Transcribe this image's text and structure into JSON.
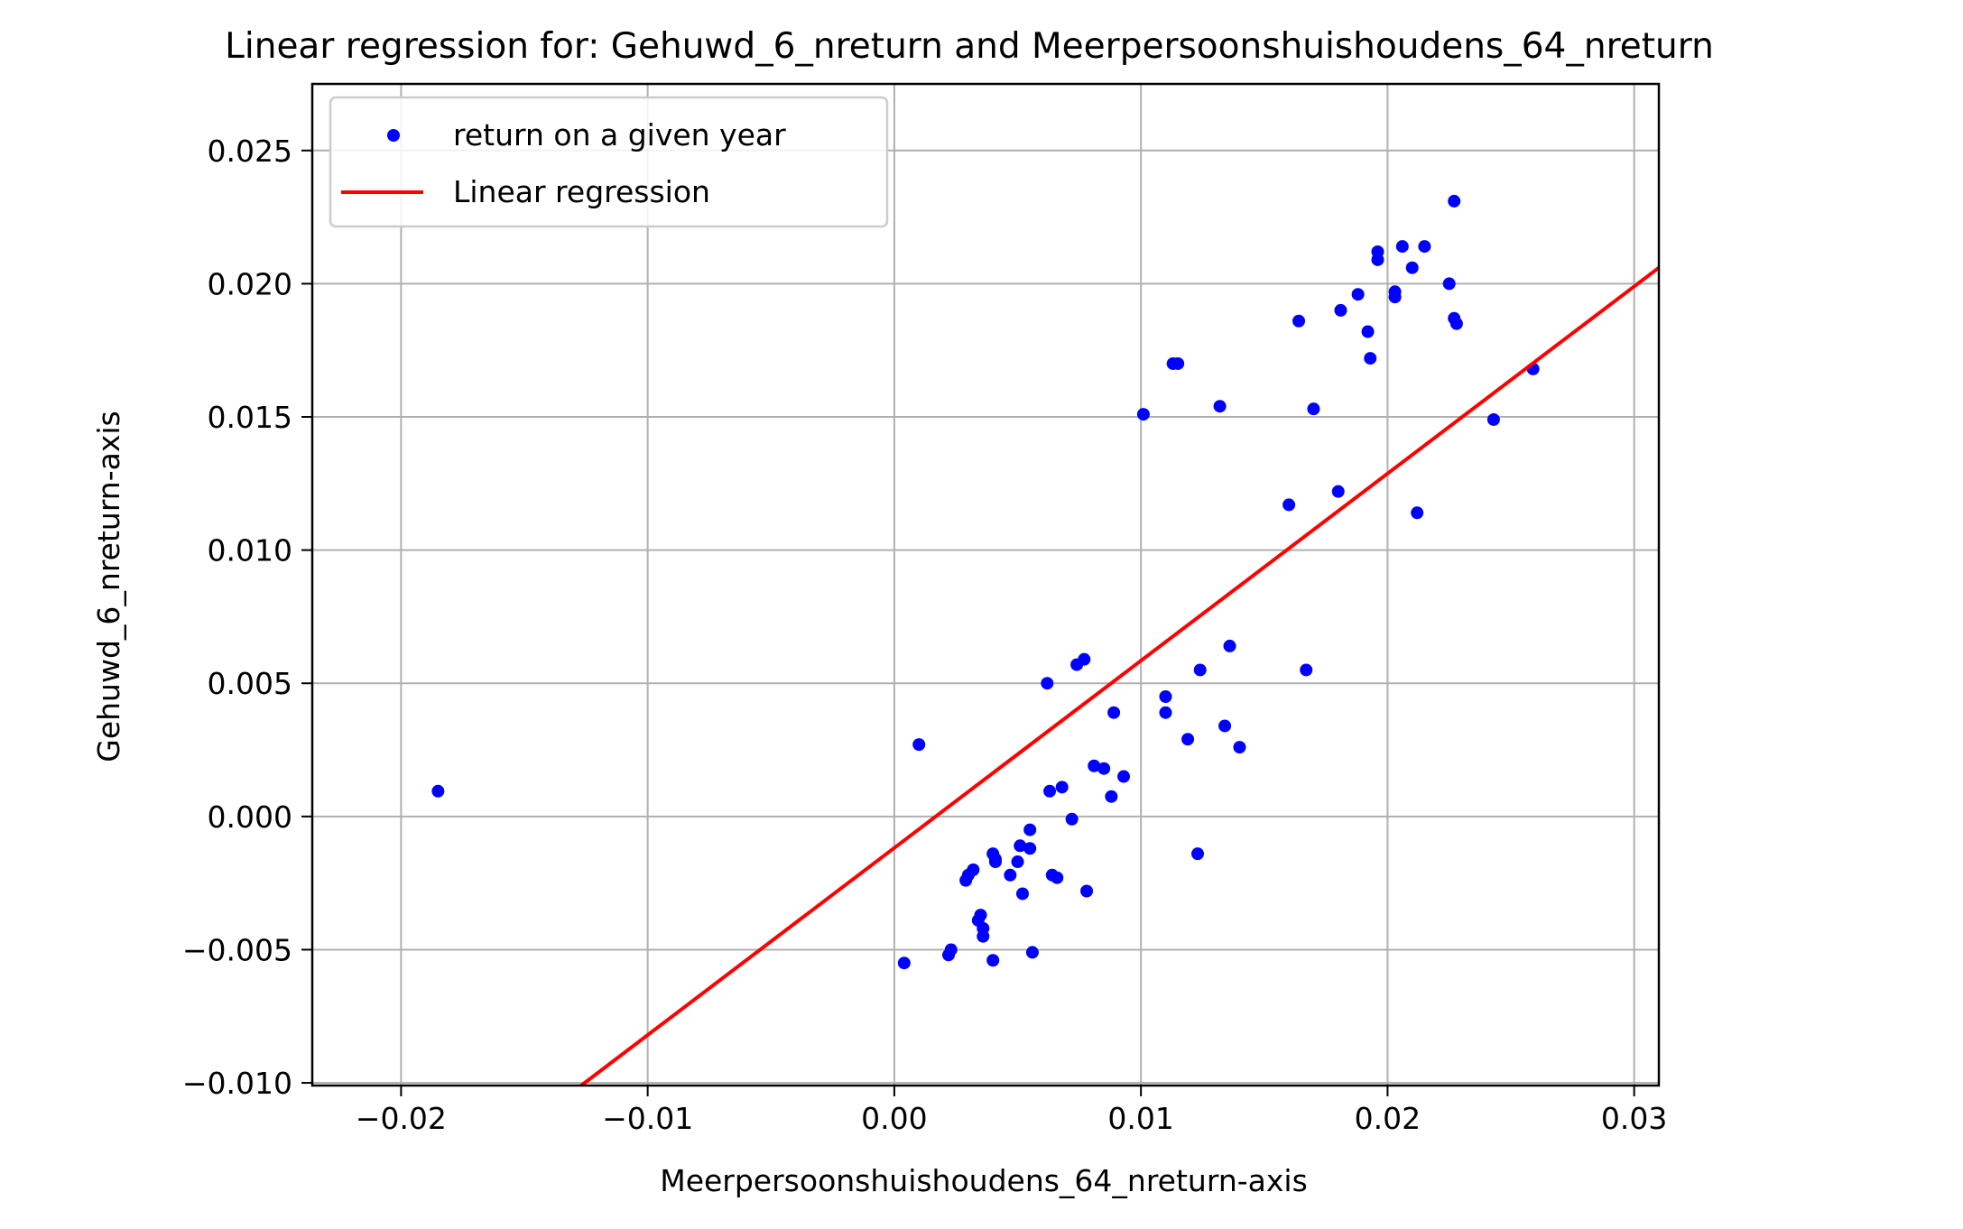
{
  "colors": {
    "points": "#0000ff",
    "regression": "#ff0000",
    "grid": "#b0b0b0",
    "axis": "#000000",
    "background": "#ffffff"
  },
  "chart_data": {
    "type": "scatter",
    "title": "Linear regression for: Gehuwd_6_nreturn and Meerpersoonshuishoudens_64_nreturn",
    "xlabel": "Meerpersoonshuishoudens_64_nreturn-axis",
    "ylabel": "Gehuwd_6_nreturn-axis",
    "xlim": [
      -0.0236,
      0.031
    ],
    "ylim": [
      -0.0101,
      0.0275
    ],
    "xticks": [
      -0.02,
      -0.01,
      0.0,
      0.01,
      0.02,
      0.03
    ],
    "xtick_labels": [
      "−0.02",
      "−0.01",
      "0.00",
      "0.01",
      "0.02",
      "0.03"
    ],
    "yticks": [
      -0.01,
      -0.005,
      0.0,
      0.005,
      0.01,
      0.015,
      0.02,
      0.025
    ],
    "ytick_labels": [
      "−0.010",
      "−0.005",
      "0.000",
      "0.005",
      "0.010",
      "0.015",
      "0.020",
      "0.025"
    ],
    "grid": true,
    "legend_position": "top-left",
    "series": [
      {
        "name": "return on a given year",
        "kind": "scatter",
        "points": [
          [
            -0.0185,
            0.00095
          ],
          [
            0.0004,
            -0.0055
          ],
          [
            0.001,
            0.0027
          ],
          [
            0.0022,
            -0.0052
          ],
          [
            0.0023,
            -0.005
          ],
          [
            0.0029,
            -0.0024
          ],
          [
            0.003,
            -0.0022
          ],
          [
            0.0032,
            -0.002
          ],
          [
            0.0034,
            -0.0039
          ],
          [
            0.0035,
            -0.0037
          ],
          [
            0.0036,
            -0.0042
          ],
          [
            0.0036,
            -0.0045
          ],
          [
            0.004,
            -0.0014
          ],
          [
            0.004,
            -0.0054
          ],
          [
            0.0041,
            -0.0016
          ],
          [
            0.0041,
            -0.0017
          ],
          [
            0.0047,
            -0.0022
          ],
          [
            0.005,
            -0.0017
          ],
          [
            0.0051,
            -0.0011
          ],
          [
            0.0052,
            -0.0029
          ],
          [
            0.0055,
            -0.0012
          ],
          [
            0.0055,
            -0.0005
          ],
          [
            0.0056,
            -0.0051
          ],
          [
            0.0062,
            0.005
          ],
          [
            0.0063,
            0.00095
          ],
          [
            0.0064,
            -0.0022
          ],
          [
            0.0066,
            -0.0023
          ],
          [
            0.0068,
            0.0011
          ],
          [
            0.0072,
            -0.0001
          ],
          [
            0.0074,
            0.0057
          ],
          [
            0.0077,
            0.0059
          ],
          [
            0.0078,
            -0.0028
          ],
          [
            0.0081,
            0.0019
          ],
          [
            0.0085,
            0.0018
          ],
          [
            0.0088,
            0.00075
          ],
          [
            0.0089,
            0.0039
          ],
          [
            0.0093,
            0.0015
          ],
          [
            0.0101,
            0.0151
          ],
          [
            0.011,
            0.0045
          ],
          [
            0.011,
            0.0039
          ],
          [
            0.0113,
            0.017
          ],
          [
            0.0115,
            0.017
          ],
          [
            0.0119,
            0.0029
          ],
          [
            0.0123,
            -0.0014
          ],
          [
            0.0124,
            0.0055
          ],
          [
            0.0132,
            0.0154
          ],
          [
            0.0134,
            0.0034
          ],
          [
            0.0136,
            0.0064
          ],
          [
            0.014,
            0.0026
          ],
          [
            0.016,
            0.0117
          ],
          [
            0.0164,
            0.0186
          ],
          [
            0.0167,
            0.0055
          ],
          [
            0.017,
            0.0153
          ],
          [
            0.018,
            0.0122
          ],
          [
            0.0181,
            0.019
          ],
          [
            0.0188,
            0.0196
          ],
          [
            0.0192,
            0.0182
          ],
          [
            0.0193,
            0.0172
          ],
          [
            0.0196,
            0.0209
          ],
          [
            0.0196,
            0.0212
          ],
          [
            0.0203,
            0.0197
          ],
          [
            0.0203,
            0.0195
          ],
          [
            0.0206,
            0.0214
          ],
          [
            0.021,
            0.0206
          ],
          [
            0.0212,
            0.0114
          ],
          [
            0.0215,
            0.0214
          ],
          [
            0.0225,
            0.02
          ],
          [
            0.0227,
            0.0187
          ],
          [
            0.0227,
            0.0231
          ],
          [
            0.0228,
            0.0185
          ],
          [
            0.0243,
            0.0149
          ],
          [
            0.0259,
            0.0168
          ]
        ]
      },
      {
        "name": "Linear regression",
        "kind": "line",
        "points": [
          [
            -0.0127,
            -0.0101
          ],
          [
            0.031,
            0.0206
          ]
        ]
      }
    ]
  }
}
